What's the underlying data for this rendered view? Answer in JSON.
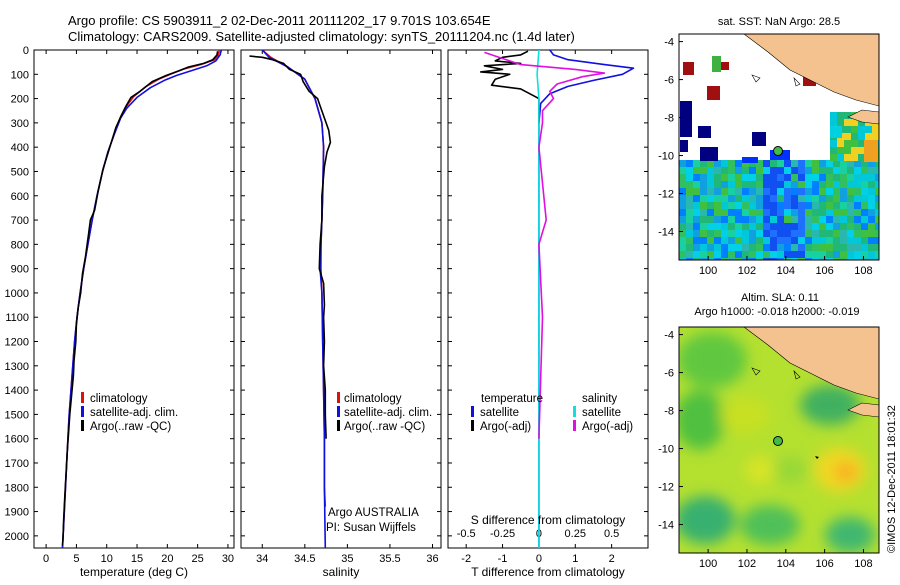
{
  "header": {
    "title_line1": "Argo profile: CS 5903911_2 02-Dec-2011 20111202_17 9.701S 103.654E",
    "title_line2": "Climatology: CARS2009. Satellite-adjusted climatology: synTS_20111204.nc (1.4d later)"
  },
  "side_stamp": "©IMOS 12-Dec-2011 18:01:32",
  "colors": {
    "climatology": "#e01010",
    "satellite": "#1010e0",
    "argo": "#000000",
    "salinity_sat": "#10e0e0",
    "salinity_argo": "#e010e0",
    "land": "#f4c28e"
  },
  "chart_data": [
    {
      "type": "line",
      "id": "temperature_profile",
      "xlabel": "temperature (deg C)",
      "ylabel": "",
      "xlim": [
        -2,
        31
      ],
      "ylim": [
        2050,
        0
      ],
      "xticks": [
        0,
        5,
        10,
        15,
        20,
        25,
        30
      ],
      "yticks": [
        0,
        100,
        200,
        300,
        400,
        500,
        600,
        700,
        800,
        900,
        1000,
        1100,
        1200,
        1300,
        1400,
        1500,
        1600,
        1700,
        1800,
        1900,
        2000
      ],
      "series": [
        {
          "name": "climatology",
          "color": "#e01010",
          "points": [
            [
              28.6,
              0
            ],
            [
              28.4,
              20
            ],
            [
              27.8,
              40
            ],
            [
              25.5,
              60
            ],
            [
              22.5,
              80
            ],
            [
              20.5,
              100
            ],
            [
              18.6,
              120
            ],
            [
              16.5,
              150
            ],
            [
              14.5,
              190
            ],
            [
              13.0,
              240
            ],
            [
              12.2,
              280
            ],
            [
              11.2,
              350
            ],
            [
              10.2,
              420
            ],
            [
              9.3,
              500
            ],
            [
              8.4,
              600
            ],
            [
              7.6,
              700
            ],
            [
              6.9,
              800
            ],
            [
              6.2,
              900
            ],
            [
              5.6,
              1000
            ],
            [
              5.1,
              1100
            ],
            [
              4.7,
              1200
            ],
            [
              4.4,
              1300
            ],
            [
              4.1,
              1400
            ],
            [
              3.8,
              1500
            ],
            [
              3.6,
              1600
            ],
            [
              3.4,
              1700
            ],
            [
              3.2,
              1800
            ],
            [
              3.0,
              1900
            ],
            [
              2.8,
              2000
            ],
            [
              2.7,
              2050
            ]
          ]
        },
        {
          "name": "satellite-adj. clim.",
          "color": "#1010e0",
          "points": [
            [
              28.9,
              0
            ],
            [
              28.7,
              20
            ],
            [
              28.0,
              45
            ],
            [
              26.5,
              65
            ],
            [
              24.0,
              85
            ],
            [
              21.5,
              105
            ],
            [
              19.5,
              125
            ],
            [
              17.2,
              155
            ],
            [
              15.0,
              195
            ],
            [
              13.3,
              240
            ],
            [
              12.3,
              280
            ],
            [
              11.2,
              350
            ],
            [
              10.2,
              420
            ],
            [
              9.3,
              500
            ],
            [
              8.4,
              600
            ],
            [
              7.6,
              700
            ],
            [
              6.9,
              800
            ],
            [
              6.2,
              900
            ],
            [
              5.6,
              1000
            ],
            [
              5.1,
              1100
            ],
            [
              4.7,
              1200
            ],
            [
              4.4,
              1300
            ],
            [
              4.1,
              1400
            ],
            [
              3.8,
              1500
            ],
            [
              3.6,
              1600
            ],
            [
              3.4,
              1700
            ],
            [
              3.2,
              1800
            ],
            [
              3.0,
              1900
            ],
            [
              2.8,
              2000
            ],
            [
              2.7,
              2050
            ]
          ]
        },
        {
          "name": "Argo(..raw -QC)",
          "color": "#000000",
          "points": [
            [
              28.3,
              5
            ],
            [
              28.2,
              20
            ],
            [
              27.5,
              40
            ],
            [
              26.0,
              55
            ],
            [
              23.5,
              70
            ],
            [
              22.0,
              85
            ],
            [
              19.8,
              105
            ],
            [
              17.5,
              130
            ],
            [
              15.5,
              170
            ],
            [
              14.0,
              195
            ],
            [
              13.2,
              230
            ],
            [
              12.4,
              270
            ],
            [
              11.5,
              320
            ],
            [
              10.5,
              400
            ],
            [
              9.4,
              490
            ],
            [
              8.6,
              580
            ],
            [
              8.0,
              660
            ],
            [
              7.3,
              700
            ],
            [
              7.0,
              760
            ],
            [
              6.5,
              850
            ],
            [
              6.0,
              920
            ],
            [
              5.7,
              1000
            ],
            [
              5.3,
              1060
            ],
            [
              5.0,
              1130
            ],
            [
              4.9,
              1200
            ],
            [
              4.6,
              1280
            ],
            [
              4.5,
              1340
            ],
            [
              4.2,
              1420
            ],
            [
              3.9,
              1500
            ],
            [
              3.7,
              1580
            ],
            [
              3.5,
              1650
            ],
            [
              3.3,
              1740
            ],
            [
              3.1,
              1830
            ],
            [
              2.9,
              1930
            ],
            [
              2.8,
              2000
            ],
            [
              2.7,
              2040
            ]
          ]
        }
      ],
      "legend": [
        "climatology",
        "satellite-adj. clim.",
        "Argo(..raw -QC)"
      ]
    },
    {
      "type": "line",
      "id": "salinity_profile",
      "xlabel": "salinity",
      "xlim": [
        33.75,
        36.1
      ],
      "ylim": [
        2050,
        0
      ],
      "xticks": [
        34,
        34.5,
        35,
        35.5,
        36
      ],
      "series": [
        {
          "name": "climatology",
          "color": "#e01010",
          "points": [
            [
              34.0,
              0
            ],
            [
              34.1,
              30
            ],
            [
              34.3,
              70
            ],
            [
              34.5,
              120
            ],
            [
              34.62,
              200
            ],
            [
              34.7,
              300
            ],
            [
              34.72,
              400
            ],
            [
              34.71,
              600
            ],
            [
              34.69,
              800
            ],
            [
              34.69,
              900
            ],
            [
              34.7,
              1000
            ],
            [
              34.71,
              1200
            ],
            [
              34.72,
              1400
            ],
            [
              34.73,
              1600
            ],
            [
              34.73,
              1800
            ],
            [
              34.74,
              1880
            ]
          ]
        },
        {
          "name": "satellite-adj. clim.",
          "color": "#1010e0",
          "points": [
            [
              34.0,
              0
            ],
            [
              34.08,
              30
            ],
            [
              34.3,
              70
            ],
            [
              34.5,
              120
            ],
            [
              34.62,
              200
            ],
            [
              34.7,
              300
            ],
            [
              34.72,
              400
            ],
            [
              34.71,
              600
            ],
            [
              34.69,
              800
            ],
            [
              34.68,
              900
            ],
            [
              34.7,
              1000
            ],
            [
              34.71,
              1200
            ],
            [
              34.72,
              1400
            ],
            [
              34.73,
              1600
            ],
            [
              34.73,
              1800
            ],
            [
              34.74,
              2050
            ]
          ]
        },
        {
          "name": "Argo(..raw -QC)",
          "color": "#000000",
          "points": [
            [
              33.85,
              25
            ],
            [
              34.0,
              30
            ],
            [
              34.12,
              40
            ],
            [
              34.25,
              55
            ],
            [
              34.32,
              80
            ],
            [
              34.45,
              100
            ],
            [
              34.48,
              130
            ],
            [
              34.55,
              170
            ],
            [
              34.65,
              200
            ],
            [
              34.68,
              230
            ],
            [
              34.73,
              280
            ],
            [
              34.78,
              330
            ],
            [
              34.8,
              380
            ],
            [
              34.76,
              420
            ],
            [
              34.73,
              480
            ],
            [
              34.7,
              600
            ],
            [
              34.7,
              700
            ],
            [
              34.68,
              800
            ],
            [
              34.67,
              900
            ],
            [
              34.72,
              960
            ],
            [
              34.73,
              1050
            ],
            [
              34.72,
              1100
            ],
            [
              34.73,
              1200
            ],
            [
              34.72,
              1300
            ],
            [
              34.74,
              1400
            ],
            [
              34.74,
              1500
            ],
            [
              34.75,
              1600
            ]
          ]
        }
      ],
      "legend": [
        "climatology",
        "satellite-adj. clim.",
        "Argo(..raw -QC)"
      ],
      "annotations": [
        "Argo AUSTRALIA",
        "PI: Susan Wijffels"
      ]
    },
    {
      "type": "line",
      "id": "difference_profile",
      "xlabel": "T difference from climatology",
      "xlabel_top": "S difference from climatology",
      "xlim": [
        -2.5,
        3.0
      ],
      "ylim": [
        2050,
        0
      ],
      "xticks": [
        -2,
        -1,
        0,
        1,
        2
      ],
      "xticks_top": [
        "-0.5",
        "-0.25",
        "0",
        "0.25",
        "0.5"
      ],
      "series": [
        {
          "name": "temperature satellite",
          "color": "#1010e0",
          "points": [
            [
              0.3,
              0
            ],
            [
              0.4,
              20
            ],
            [
              0.8,
              40
            ],
            [
              1.8,
              60
            ],
            [
              2.6,
              75
            ],
            [
              2.3,
              100
            ],
            [
              1.5,
              125
            ],
            [
              0.8,
              150
            ],
            [
              0.3,
              180
            ],
            [
              0.05,
              220
            ],
            [
              0,
              300
            ],
            [
              0,
              2050
            ]
          ]
        },
        {
          "name": "temperature Argo(-adj)",
          "color": "#000000",
          "points": [
            [
              -0.3,
              5
            ],
            [
              -0.5,
              20
            ],
            [
              -1.0,
              30
            ],
            [
              -1.2,
              45
            ],
            [
              -0.5,
              55
            ],
            [
              -1.5,
              65
            ],
            [
              -1.0,
              80
            ],
            [
              -1.6,
              90
            ],
            [
              -0.8,
              100
            ],
            [
              -1.2,
              120
            ],
            [
              -1.3,
              145
            ],
            [
              -0.5,
              160
            ],
            [
              0.0,
              200
            ],
            [
              0,
              300
            ]
          ]
        },
        {
          "name": "salinity satellite",
          "color": "#10e0e0",
          "points": [
            [
              0,
              0
            ],
            [
              -0.05,
              100
            ],
            [
              0,
              200
            ],
            [
              0,
              400
            ],
            [
              0,
              800
            ],
            [
              0,
              1400
            ],
            [
              0,
              2050
            ]
          ]
        },
        {
          "name": "salinity Argo(-adj)",
          "color": "#e010e0",
          "points": [
            [
              -1.5,
              10
            ],
            [
              -0.9,
              40
            ],
            [
              -0.5,
              60
            ],
            [
              1.0,
              80
            ],
            [
              1.8,
              95
            ],
            [
              1.2,
              110
            ],
            [
              0.5,
              140
            ],
            [
              0.3,
              170
            ],
            [
              0.4,
              200
            ],
            [
              0.1,
              250
            ],
            [
              0.1,
              300
            ],
            [
              0,
              400
            ],
            [
              0.2,
              700
            ],
            [
              0,
              800
            ],
            [
              0.1,
              1100
            ],
            [
              0,
              1600
            ]
          ]
        }
      ],
      "legend_groups": [
        {
          "title": "temperature",
          "items": [
            "satellite",
            "Argo(-adj)"
          ]
        },
        {
          "title": "salinity",
          "items": [
            "satellite",
            "Argo(-adj)"
          ]
        }
      ]
    },
    {
      "type": "heatmap",
      "id": "sst_map",
      "title": "sat. SST: NaN Argo: 28.5",
      "xlim": [
        98.5,
        108.8
      ],
      "ylim": [
        -15.5,
        -3.6
      ],
      "xticks": [
        100,
        102,
        104,
        106,
        108
      ],
      "yticks": [
        -4,
        -6,
        -8,
        -10,
        -12,
        -14
      ],
      "marker": {
        "lon": 103.654,
        "lat": -9.701
      }
    },
    {
      "type": "heatmap",
      "id": "sla_map",
      "title": "Altim. SLA: 0.11",
      "subtitle": "Argo h1000: -0.018 h2000: -0.019",
      "xlim": [
        98.5,
        108.8
      ],
      "ylim": [
        -15.5,
        -3.6
      ],
      "xticks": [
        100,
        102,
        104,
        106,
        108
      ],
      "yticks": [
        -4,
        -6,
        -8,
        -10,
        -12,
        -14
      ],
      "marker": {
        "lon": 103.654,
        "lat": -9.701
      }
    }
  ]
}
